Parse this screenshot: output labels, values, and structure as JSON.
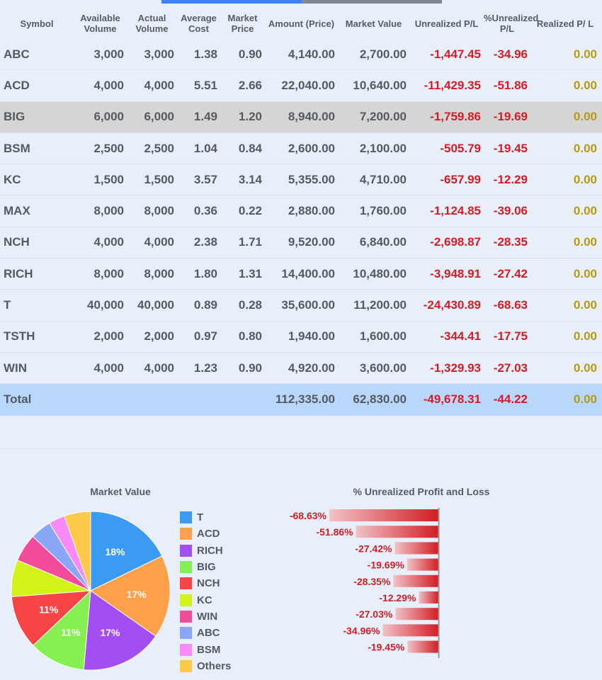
{
  "tabs": [
    {
      "label": ""
    },
    {
      "label": ""
    }
  ],
  "headers": {
    "symbol": "Symbol",
    "available_volume": "Available Volume",
    "actual_volume": "Actual Volume",
    "average_cost": "Average Cost",
    "market_price": "Market Price",
    "amount": "Amount (Price)",
    "market_value": "Market Value",
    "unrealized_pl": "Unrealized P/L",
    "pct_unrealized_pl": "%Unrealized P/L",
    "realized_pl": "Realized P/ L"
  },
  "rows": [
    {
      "symbol": "ABC",
      "available": "3,000",
      "actual": "3,000",
      "cost": "1.38",
      "market": "0.90",
      "amount": "4,140.00",
      "value": "2,700.00",
      "unrealized": "-1,447.45",
      "pct": "-34.96",
      "realized": "0.00"
    },
    {
      "symbol": "ACD",
      "available": "4,000",
      "actual": "4,000",
      "cost": "5.51",
      "market": "2.66",
      "amount": "22,040.00",
      "value": "10,640.00",
      "unrealized": "-11,429.35",
      "pct": "-51.86",
      "realized": "0.00"
    },
    {
      "symbol": "BIG",
      "available": "6,000",
      "actual": "6,000",
      "cost": "1.49",
      "market": "1.20",
      "amount": "8,940.00",
      "value": "7,200.00",
      "unrealized": "-1,759.86",
      "pct": "-19.69",
      "realized": "0.00"
    },
    {
      "symbol": "BSM",
      "available": "2,500",
      "actual": "2,500",
      "cost": "1.04",
      "market": "0.84",
      "amount": "2,600.00",
      "value": "2,100.00",
      "unrealized": "-505.79",
      "pct": "-19.45",
      "realized": "0.00"
    },
    {
      "symbol": "KC",
      "available": "1,500",
      "actual": "1,500",
      "cost": "3.57",
      "market": "3.14",
      "amount": "5,355.00",
      "value": "4,710.00",
      "unrealized": "-657.99",
      "pct": "-12.29",
      "realized": "0.00"
    },
    {
      "symbol": "MAX",
      "available": "8,000",
      "actual": "8,000",
      "cost": "0.36",
      "market": "0.22",
      "amount": "2,880.00",
      "value": "1,760.00",
      "unrealized": "-1,124.85",
      "pct": "-39.06",
      "realized": "0.00"
    },
    {
      "symbol": "NCH",
      "available": "4,000",
      "actual": "4,000",
      "cost": "2.38",
      "market": "1.71",
      "amount": "9,520.00",
      "value": "6,840.00",
      "unrealized": "-2,698.87",
      "pct": "-28.35",
      "realized": "0.00"
    },
    {
      "symbol": "RICH",
      "available": "8,000",
      "actual": "8,000",
      "cost": "1.80",
      "market": "1.31",
      "amount": "14,400.00",
      "value": "10,480.00",
      "unrealized": "-3,948.91",
      "pct": "-27.42",
      "realized": "0.00"
    },
    {
      "symbol": "T",
      "available": "40,000",
      "actual": "40,000",
      "cost": "0.89",
      "market": "0.28",
      "amount": "35,600.00",
      "value": "11,200.00",
      "unrealized": "-24,430.89",
      "pct": "-68.63",
      "realized": "0.00"
    },
    {
      "symbol": "TSTH",
      "available": "2,000",
      "actual": "2,000",
      "cost": "0.97",
      "market": "0.80",
      "amount": "1,940.00",
      "value": "1,600.00",
      "unrealized": "-344.41",
      "pct": "-17.75",
      "realized": "0.00"
    },
    {
      "symbol": "WIN",
      "available": "4,000",
      "actual": "4,000",
      "cost": "1.23",
      "market": "0.90",
      "amount": "4,920.00",
      "value": "3,600.00",
      "unrealized": "-1,329.93",
      "pct": "-27.03",
      "realized": "0.00"
    }
  ],
  "selected_row": 2,
  "total": {
    "label": "Total",
    "amount": "112,335.00",
    "value": "62,830.00",
    "unrealized": "-49,678.31",
    "pct": "-44.22",
    "realized": "0.00"
  },
  "colors": {
    "negative": "#d21d26",
    "realized": "#b59b12",
    "selected_row": "#d5d5d5",
    "total_row": "#b9d6fb",
    "tab_active": "#3e82f7",
    "tab_inactive": "#808892"
  },
  "chart_data": [
    {
      "type": "pie",
      "title": "Market Value",
      "legend_position": "right",
      "slices": [
        {
          "label": "T",
          "value": 17.8,
          "display": "18%",
          "color": "#3b9bf2"
        },
        {
          "label": "ACD",
          "value": 16.9,
          "display": "17%",
          "color": "#fca04a"
        },
        {
          "label": "RICH",
          "value": 16.7,
          "display": "17%",
          "color": "#a24ef0"
        },
        {
          "label": "BIG",
          "value": 11.5,
          "display": "11%",
          "color": "#86f053"
        },
        {
          "label": "NCH",
          "value": 10.9,
          "display": "11%",
          "color": "#f74444"
        },
        {
          "label": "KC",
          "value": 7.5,
          "display": "",
          "color": "#d2f21a"
        },
        {
          "label": "WIN",
          "value": 5.7,
          "display": "",
          "color": "#f34c9c"
        },
        {
          "label": "ABC",
          "value": 4.3,
          "display": "",
          "color": "#8aa7f7"
        },
        {
          "label": "BSM",
          "value": 3.3,
          "display": "",
          "color": "#f98af7"
        },
        {
          "label": "Others",
          "value": 5.4,
          "display": "",
          "color": "#fdc94a"
        }
      ]
    },
    {
      "type": "bar",
      "orientation": "horizontal",
      "title": "% Unrealized Profit and Loss",
      "bars": [
        {
          "label": "-68.63%",
          "value": -68.63
        },
        {
          "label": "-51.86%",
          "value": -51.86
        },
        {
          "label": "-27.42%",
          "value": -27.42
        },
        {
          "label": "-19.69%",
          "value": -19.69
        },
        {
          "label": "-28.35%",
          "value": -28.35
        },
        {
          "label": "-12.29%",
          "value": -12.29
        },
        {
          "label": "-27.03%",
          "value": -27.03
        },
        {
          "label": "-34.96%",
          "value": -34.96
        },
        {
          "label": "-19.45%",
          "value": -19.45
        }
      ],
      "bar_color": "#d21d26"
    }
  ]
}
